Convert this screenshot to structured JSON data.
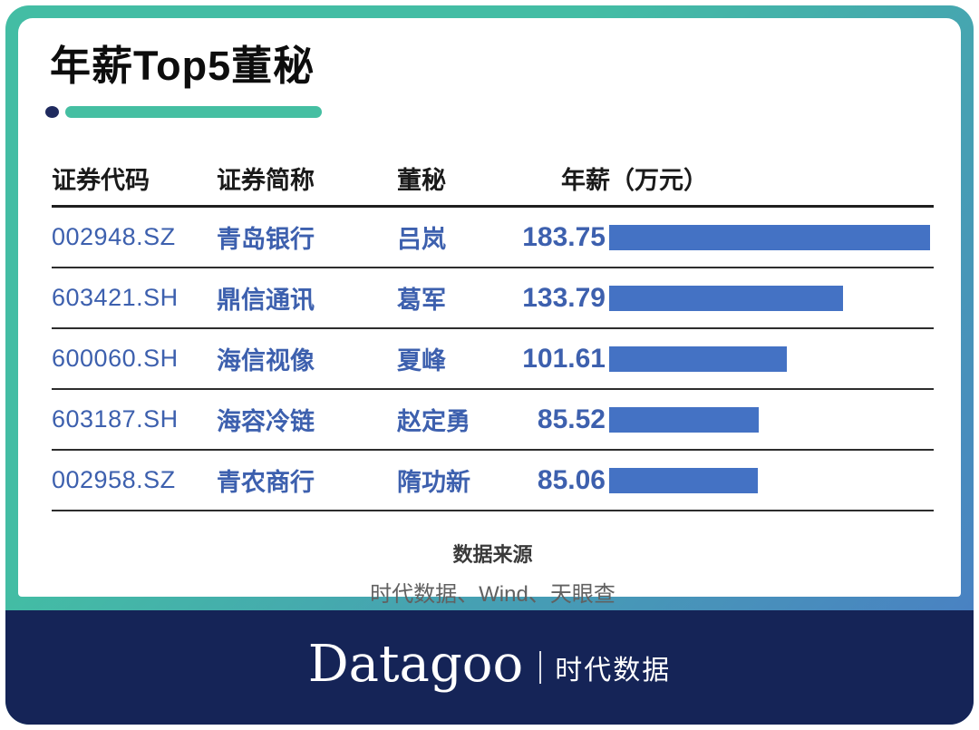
{
  "title": "年薪Top5董秘",
  "table": {
    "headers": [
      "证券代码",
      "证券简称",
      "董秘",
      "年薪（万元）"
    ],
    "rows": [
      {
        "code": "002948.SZ",
        "name": "青岛银行",
        "secretary": "吕岚",
        "salary": "183.75"
      },
      {
        "code": "603421.SH",
        "name": "鼎信通讯",
        "secretary": "葛军",
        "salary": "133.79"
      },
      {
        "code": "600060.SH",
        "name": "海信视像",
        "secretary": "夏峰",
        "salary": "101.61"
      },
      {
        "code": "603187.SH",
        "name": "海容冷链",
        "secretary": "赵定勇",
        "salary": "85.52"
      },
      {
        "code": "002958.SZ",
        "name": "青农商行",
        "secretary": "隋功新",
        "salary": "85.06"
      }
    ]
  },
  "chart_data": {
    "type": "bar",
    "orientation": "horizontal",
    "title": "年薪Top5董秘",
    "categories": [
      "吕岚（青岛银行 002948.SZ）",
      "葛军（鼎信通讯 603421.SH）",
      "夏峰（海信视像 600060.SH）",
      "赵定勇（海容冷链 603187.SH）",
      "隋功新（青农商行 002958.SZ）"
    ],
    "values": [
      183.75,
      133.79,
      101.61,
      85.52,
      85.06
    ],
    "xlabel": "年薪（万元）",
    "xlim": [
      0,
      190
    ],
    "grid": false,
    "legend": "none",
    "bar_color": "#4472C4"
  },
  "source": {
    "label": "数据来源",
    "text": "时代数据、Wind、天眼查"
  },
  "footer": {
    "brand": "Datagoo",
    "brand_cn": "时代数据"
  },
  "colors": {
    "frame_teal": "#43BDA4",
    "frame_blue": "#4A7BC6",
    "footer_navy": "#152457",
    "bar_blue": "#4472C4",
    "row_text_blue": "#3D60AE",
    "accent_dot_navy": "#1F2A5E",
    "accent_line_teal": "#45BFA2"
  }
}
